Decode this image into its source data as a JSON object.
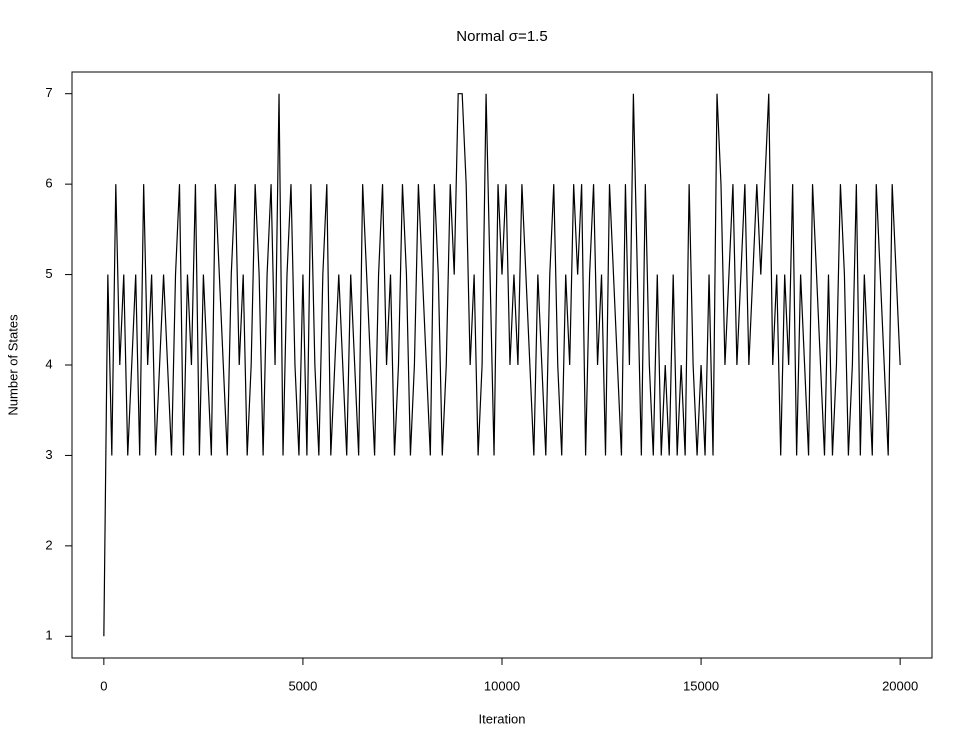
{
  "chart_data": {
    "type": "line",
    "title": "Normal σ=1.5",
    "x_label": "Iteration",
    "y_label": "Number of States",
    "xlim": [
      -800,
      20800
    ],
    "ylim": [
      0.76,
      7.24
    ],
    "xticks": [
      0,
      5000,
      10000,
      15000,
      20000
    ],
    "yticks": [
      1,
      2,
      3,
      4,
      5,
      6,
      7
    ],
    "x": [
      0,
      100,
      200,
      300,
      400,
      500,
      600,
      700,
      800,
      900,
      1000,
      1100,
      1200,
      1300,
      1400,
      1500,
      1600,
      1700,
      1800,
      1900,
      2000,
      2100,
      2200,
      2300,
      2400,
      2500,
      2600,
      2700,
      2800,
      2900,
      3000,
      3100,
      3200,
      3300,
      3400,
      3500,
      3600,
      3700,
      3800,
      3900,
      4000,
      4100,
      4200,
      4300,
      4400,
      4500,
      4600,
      4700,
      4800,
      4900,
      5000,
      5100,
      5200,
      5300,
      5400,
      5500,
      5600,
      5700,
      5800,
      5900,
      6000,
      6100,
      6200,
      6300,
      6400,
      6500,
      6600,
      6700,
      6800,
      6900,
      7000,
      7100,
      7200,
      7300,
      7400,
      7500,
      7600,
      7700,
      7800,
      7900,
      8000,
      8100,
      8200,
      8300,
      8400,
      8500,
      8600,
      8700,
      8800,
      8900,
      9000,
      9100,
      9200,
      9300,
      9400,
      9500,
      9600,
      9700,
      9800,
      9900,
      10000,
      10100,
      10200,
      10300,
      10400,
      10500,
      10600,
      10700,
      10800,
      10900,
      11000,
      11100,
      11200,
      11300,
      11400,
      11500,
      11600,
      11700,
      11800,
      11900,
      12000,
      12100,
      12200,
      12300,
      12400,
      12500,
      12600,
      12700,
      12800,
      12900,
      13000,
      13100,
      13200,
      13300,
      13400,
      13500,
      13600,
      13700,
      13800,
      13900,
      14000,
      14100,
      14200,
      14300,
      14400,
      14500,
      14600,
      14700,
      14800,
      14900,
      15000,
      15100,
      15200,
      15300,
      15400,
      15500,
      15600,
      15700,
      15800,
      15900,
      16000,
      16100,
      16200,
      16300,
      16400,
      16500,
      16600,
      16700,
      16800,
      16900,
      17000,
      17100,
      17200,
      17300,
      17400,
      17500,
      17600,
      17700,
      17800,
      17900,
      18000,
      18100,
      18200,
      18300,
      18400,
      18500,
      18600,
      18700,
      18800,
      18900,
      19000,
      19100,
      19200,
      19300,
      19400,
      19500,
      19600,
      19700,
      19800,
      19900,
      20000
    ],
    "series": [
      {
        "color": "#000000",
        "values": [
          1,
          5,
          3,
          6,
          4,
          5,
          3,
          4,
          5,
          3,
          6,
          4,
          5,
          3,
          4,
          5,
          4,
          3,
          5,
          6,
          3,
          5,
          4,
          6,
          3,
          5,
          4,
          3,
          6,
          5,
          4,
          3,
          5,
          6,
          4,
          5,
          3,
          4,
          6,
          5,
          3,
          5,
          6,
          4,
          7,
          3,
          5,
          6,
          4,
          3,
          5,
          3,
          6,
          4,
          3,
          5,
          6,
          3,
          4,
          5,
          4,
          3,
          5,
          4,
          3,
          6,
          5,
          4,
          3,
          5,
          6,
          4,
          5,
          3,
          4,
          6,
          5,
          3,
          4,
          6,
          5,
          4,
          3,
          6,
          5,
          3,
          4,
          6,
          5,
          7,
          7,
          6,
          4,
          5,
          3,
          4,
          7,
          5,
          3,
          6,
          5,
          6,
          4,
          5,
          4,
          6,
          5,
          4,
          3,
          5,
          4,
          3,
          5,
          6,
          4,
          3,
          5,
          4,
          6,
          5,
          6,
          3,
          5,
          6,
          4,
          5,
          3,
          6,
          5,
          4,
          3,
          6,
          4,
          7,
          5,
          3,
          6,
          4,
          3,
          5,
          3,
          4,
          3,
          5,
          3,
          4,
          3,
          6,
          4,
          3,
          4,
          3,
          5,
          3,
          7,
          6,
          4,
          5,
          6,
          4,
          5,
          6,
          4,
          5,
          6,
          5,
          6,
          7,
          4,
          5,
          3,
          5,
          4,
          6,
          3,
          5,
          4,
          3,
          6,
          5,
          4,
          3,
          5,
          3,
          4,
          6,
          5,
          3,
          4,
          6,
          3,
          5,
          4,
          3,
          6,
          5,
          4,
          3,
          6,
          5,
          4
        ]
      }
    ]
  }
}
